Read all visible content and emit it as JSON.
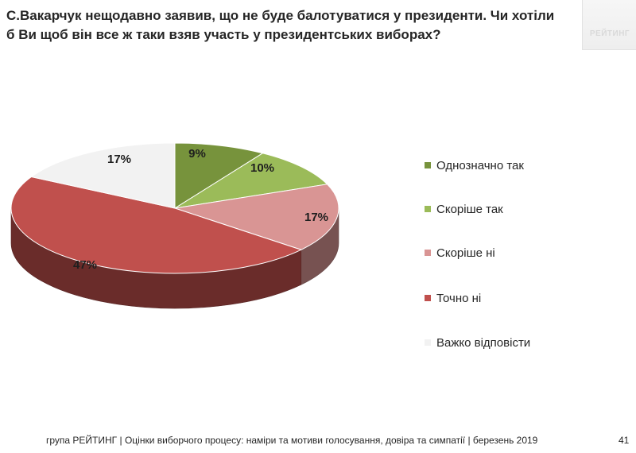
{
  "header": {
    "title": "С.Вакарчук нещодавно заявив, що не буде балотуватися у президенти. Чи хотіли б Ви щоб він все ж таки взяв участь у президентських виборах?",
    "logo_text": "РЕЙТИНГ"
  },
  "chart_data": {
    "type": "pie",
    "title": "С.Вакарчук нещодавно заявив, що не буде балотуватися у президенти. Чи хотіли б Ви щоб він все ж таки взяв участь у президентських виборах?",
    "categories": [
      "Однозначно так",
      "Скоріше  так",
      "Скоріше  ні",
      "Точно ні",
      "Важко відповісти"
    ],
    "values": [
      9,
      10,
      17,
      47,
      17
    ],
    "value_labels": [
      "9%",
      "10%",
      "17%",
      "47%",
      "17%"
    ],
    "colors": [
      "#77933c",
      "#9bbb59",
      "#d99594",
      "#c0504d",
      "#f2f2f2"
    ],
    "legend_position": "right"
  },
  "footer": {
    "text": "група РЕЙТИНГ | Оцінки виборчого процесу: наміри та мотиви голосування, довіра та симпатії | березень 2019",
    "page_number": "41"
  }
}
